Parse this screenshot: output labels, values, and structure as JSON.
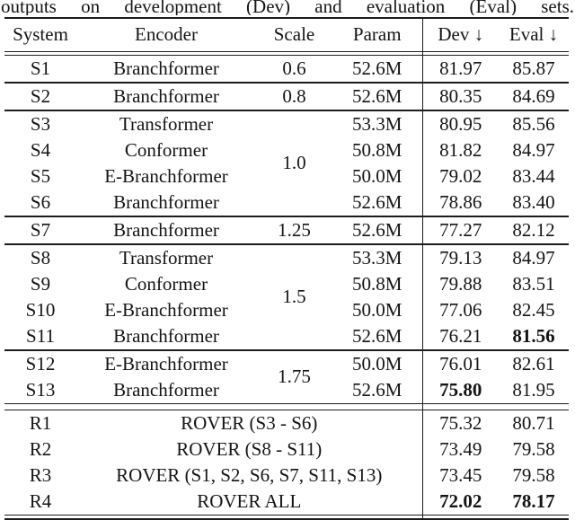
{
  "caption_tail": "outputs on development (Dev) and evaluation (Eval) sets.",
  "columns": [
    "System",
    "Encoder",
    "Scale",
    "Param",
    "Dev ↓",
    "Eval ↓"
  ],
  "rows": [
    {
      "system": "S1",
      "encoder": "Branchformer",
      "scale": "0.6",
      "scaleRowspan": 1,
      "param": "52.6M",
      "dev": "81.97",
      "eval": "85.87"
    },
    {
      "system": "S2",
      "encoder": "Branchformer",
      "scale": "0.8",
      "scaleRowspan": 1,
      "param": "52.6M",
      "dev": "80.35",
      "eval": "84.69",
      "ruleAbove": true
    },
    {
      "system": "S3",
      "encoder": "Transformer",
      "scale": "1.0",
      "scaleRowspan": 4,
      "param": "53.3M",
      "dev": "80.95",
      "eval": "85.56",
      "ruleAbove": true
    },
    {
      "system": "S4",
      "encoder": "Conformer",
      "param": "50.8M",
      "dev": "81.82",
      "eval": "84.97"
    },
    {
      "system": "S5",
      "encoder": "E-Branchformer",
      "param": "50.0M",
      "dev": "79.02",
      "eval": "83.44"
    },
    {
      "system": "S6",
      "encoder": "Branchformer",
      "param": "52.6M",
      "dev": "78.86",
      "eval": "83.40"
    },
    {
      "system": "S7",
      "encoder": "Branchformer",
      "scale": "1.25",
      "scaleRowspan": 1,
      "param": "52.6M",
      "dev": "77.27",
      "eval": "82.12",
      "ruleAbove": true
    },
    {
      "system": "S8",
      "encoder": "Transformer",
      "scale": "1.5",
      "scaleRowspan": 4,
      "param": "53.3M",
      "dev": "79.13",
      "eval": "84.97",
      "ruleAbove": true
    },
    {
      "system": "S9",
      "encoder": "Conformer",
      "param": "50.8M",
      "dev": "79.88",
      "eval": "83.51"
    },
    {
      "system": "S10",
      "encoder": "E-Branchformer",
      "param": "50.0M",
      "dev": "77.06",
      "eval": "82.45"
    },
    {
      "system": "S11",
      "encoder": "Branchformer",
      "param": "52.6M",
      "dev": "76.21",
      "eval": "81.56",
      "evalBold": true
    },
    {
      "system": "S12",
      "encoder": "E-Branchformer",
      "scale": "1.75",
      "scaleRowspan": 2,
      "param": "50.0M",
      "dev": "76.01",
      "eval": "82.61",
      "ruleAbove": true
    },
    {
      "system": "S13",
      "encoder": "Branchformer",
      "param": "52.6M",
      "dev": "75.80",
      "eval": "81.95",
      "devBold": true
    },
    {
      "type": "gap"
    },
    {
      "system": "R1",
      "label": "ROVER (S3 - S6)",
      "dev": "75.32",
      "eval": "80.71"
    },
    {
      "system": "R2",
      "label": "ROVER (S8 - S11)",
      "dev": "73.49",
      "eval": "79.58"
    },
    {
      "system": "R3",
      "label": "ROVER (S1, S2, S6, S7, S11, S13)",
      "dev": "73.45",
      "eval": "79.58"
    },
    {
      "system": "R4",
      "label": "ROVER ALL",
      "dev": "72.02",
      "eval": "78.17",
      "devBold": true,
      "evalBold": true,
      "last": true
    }
  ]
}
